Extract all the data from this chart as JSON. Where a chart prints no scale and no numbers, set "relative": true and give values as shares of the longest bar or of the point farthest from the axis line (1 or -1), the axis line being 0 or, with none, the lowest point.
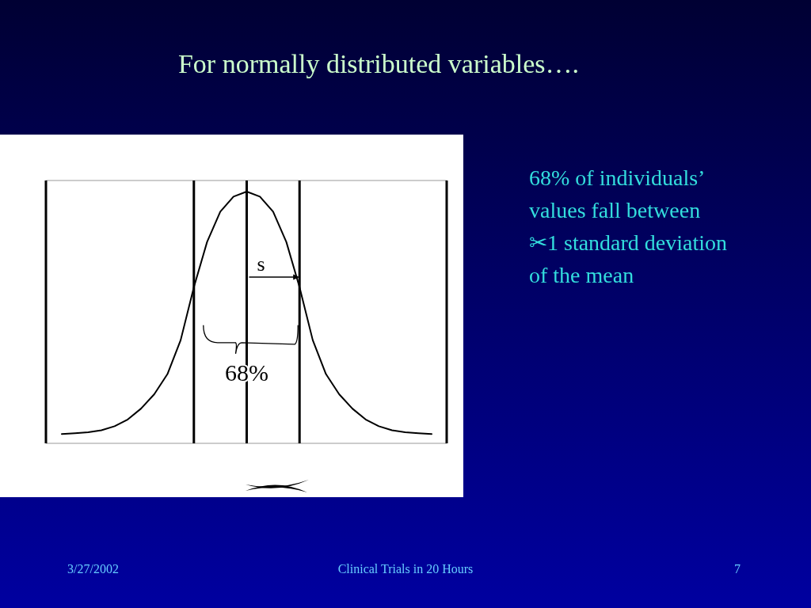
{
  "chart_data": {
    "type": "line",
    "title": "For normally distributed variables….",
    "relative": true,
    "grid": "x",
    "categories": [
      null,
      null,
      null,
      null,
      null,
      null,
      null,
      null,
      null,
      null,
      null,
      null,
      null,
      null,
      null,
      null,
      null,
      null,
      null,
      null,
      null,
      null,
      null,
      null,
      null,
      null,
      null,
      null,
      null
    ],
    "series": [
      {
        "color": "#000000",
        "values": [
          0.037,
          0.04,
          0.044,
          0.052,
          0.068,
          0.095,
          0.138,
          0.195,
          0.275,
          0.41,
          0.62,
          0.8,
          0.92,
          0.98,
          1,
          0.98,
          0.92,
          0.8,
          0.62,
          0.41,
          0.275,
          0.195,
          0.138,
          0.095,
          0.068,
          0.052,
          0.044,
          0.04,
          0.037
        ]
      }
    ],
    "annotations": [
      "s",
      "68%",
      "68% of individuals’\nvalues fall between\n✂1 standard deviation\nof the mean",
      "3/27/2002",
      "Clinical Trials in 20 Hours",
      "7"
    ]
  }
}
